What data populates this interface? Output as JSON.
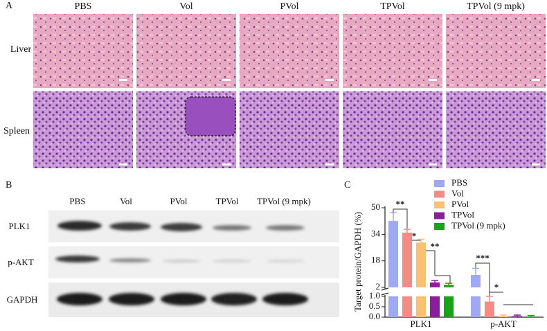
{
  "panel_a": {
    "label": "A",
    "columns": [
      "PBS",
      "Vol",
      "PVol",
      "TPVol",
      "TPVol (9 mpk)"
    ],
    "rows": [
      "Liver",
      "Spleen"
    ]
  },
  "panel_b": {
    "label": "B",
    "lanes": [
      "PBS",
      "Vol",
      "PVol",
      "TPVol",
      "TPVol (9 mpk)"
    ],
    "rows": [
      "PLK1",
      "p-AKT",
      "GAPDH"
    ]
  },
  "chart_data": {
    "type": "bar",
    "label": "C",
    "y_label": "Target protein/GAPDH (%)",
    "categories": [
      "PLK1",
      "p-AKT"
    ],
    "series": [
      {
        "name": "PBS",
        "color": "#9fa8f2",
        "values": [
          42,
          9.5
        ],
        "errors": [
          5,
          4
        ]
      },
      {
        "name": "Vol",
        "color": "#f48b86",
        "values": [
          35,
          0.75
        ],
        "errors": [
          2,
          0.25
        ]
      },
      {
        "name": "PVol",
        "color": "#fbc173",
        "values": [
          29,
          0.05
        ],
        "errors": [
          2,
          0.05
        ]
      },
      {
        "name": "TPVol",
        "color": "#8b1f9b",
        "values": [
          5,
          0.05
        ],
        "errors": [
          1.2,
          0.05
        ]
      },
      {
        "name": "TPVol (9 mpk)",
        "color": "#1aa31a",
        "values": [
          3.5,
          0.03
        ],
        "errors": [
          1,
          0.05
        ]
      }
    ],
    "ylim_lower": [
      0,
      1
    ],
    "yticks_lower": [
      {
        "value": 0,
        "label": "0.0"
      },
      0.5,
      {
        "value": 1,
        "label": "1.0"
      }
    ],
    "ylim_upper": [
      2,
      50
    ],
    "yticks_upper": [
      2,
      18,
      34,
      50
    ],
    "annotations": [
      "**",
      "*",
      "**",
      "***",
      "*"
    ]
  }
}
